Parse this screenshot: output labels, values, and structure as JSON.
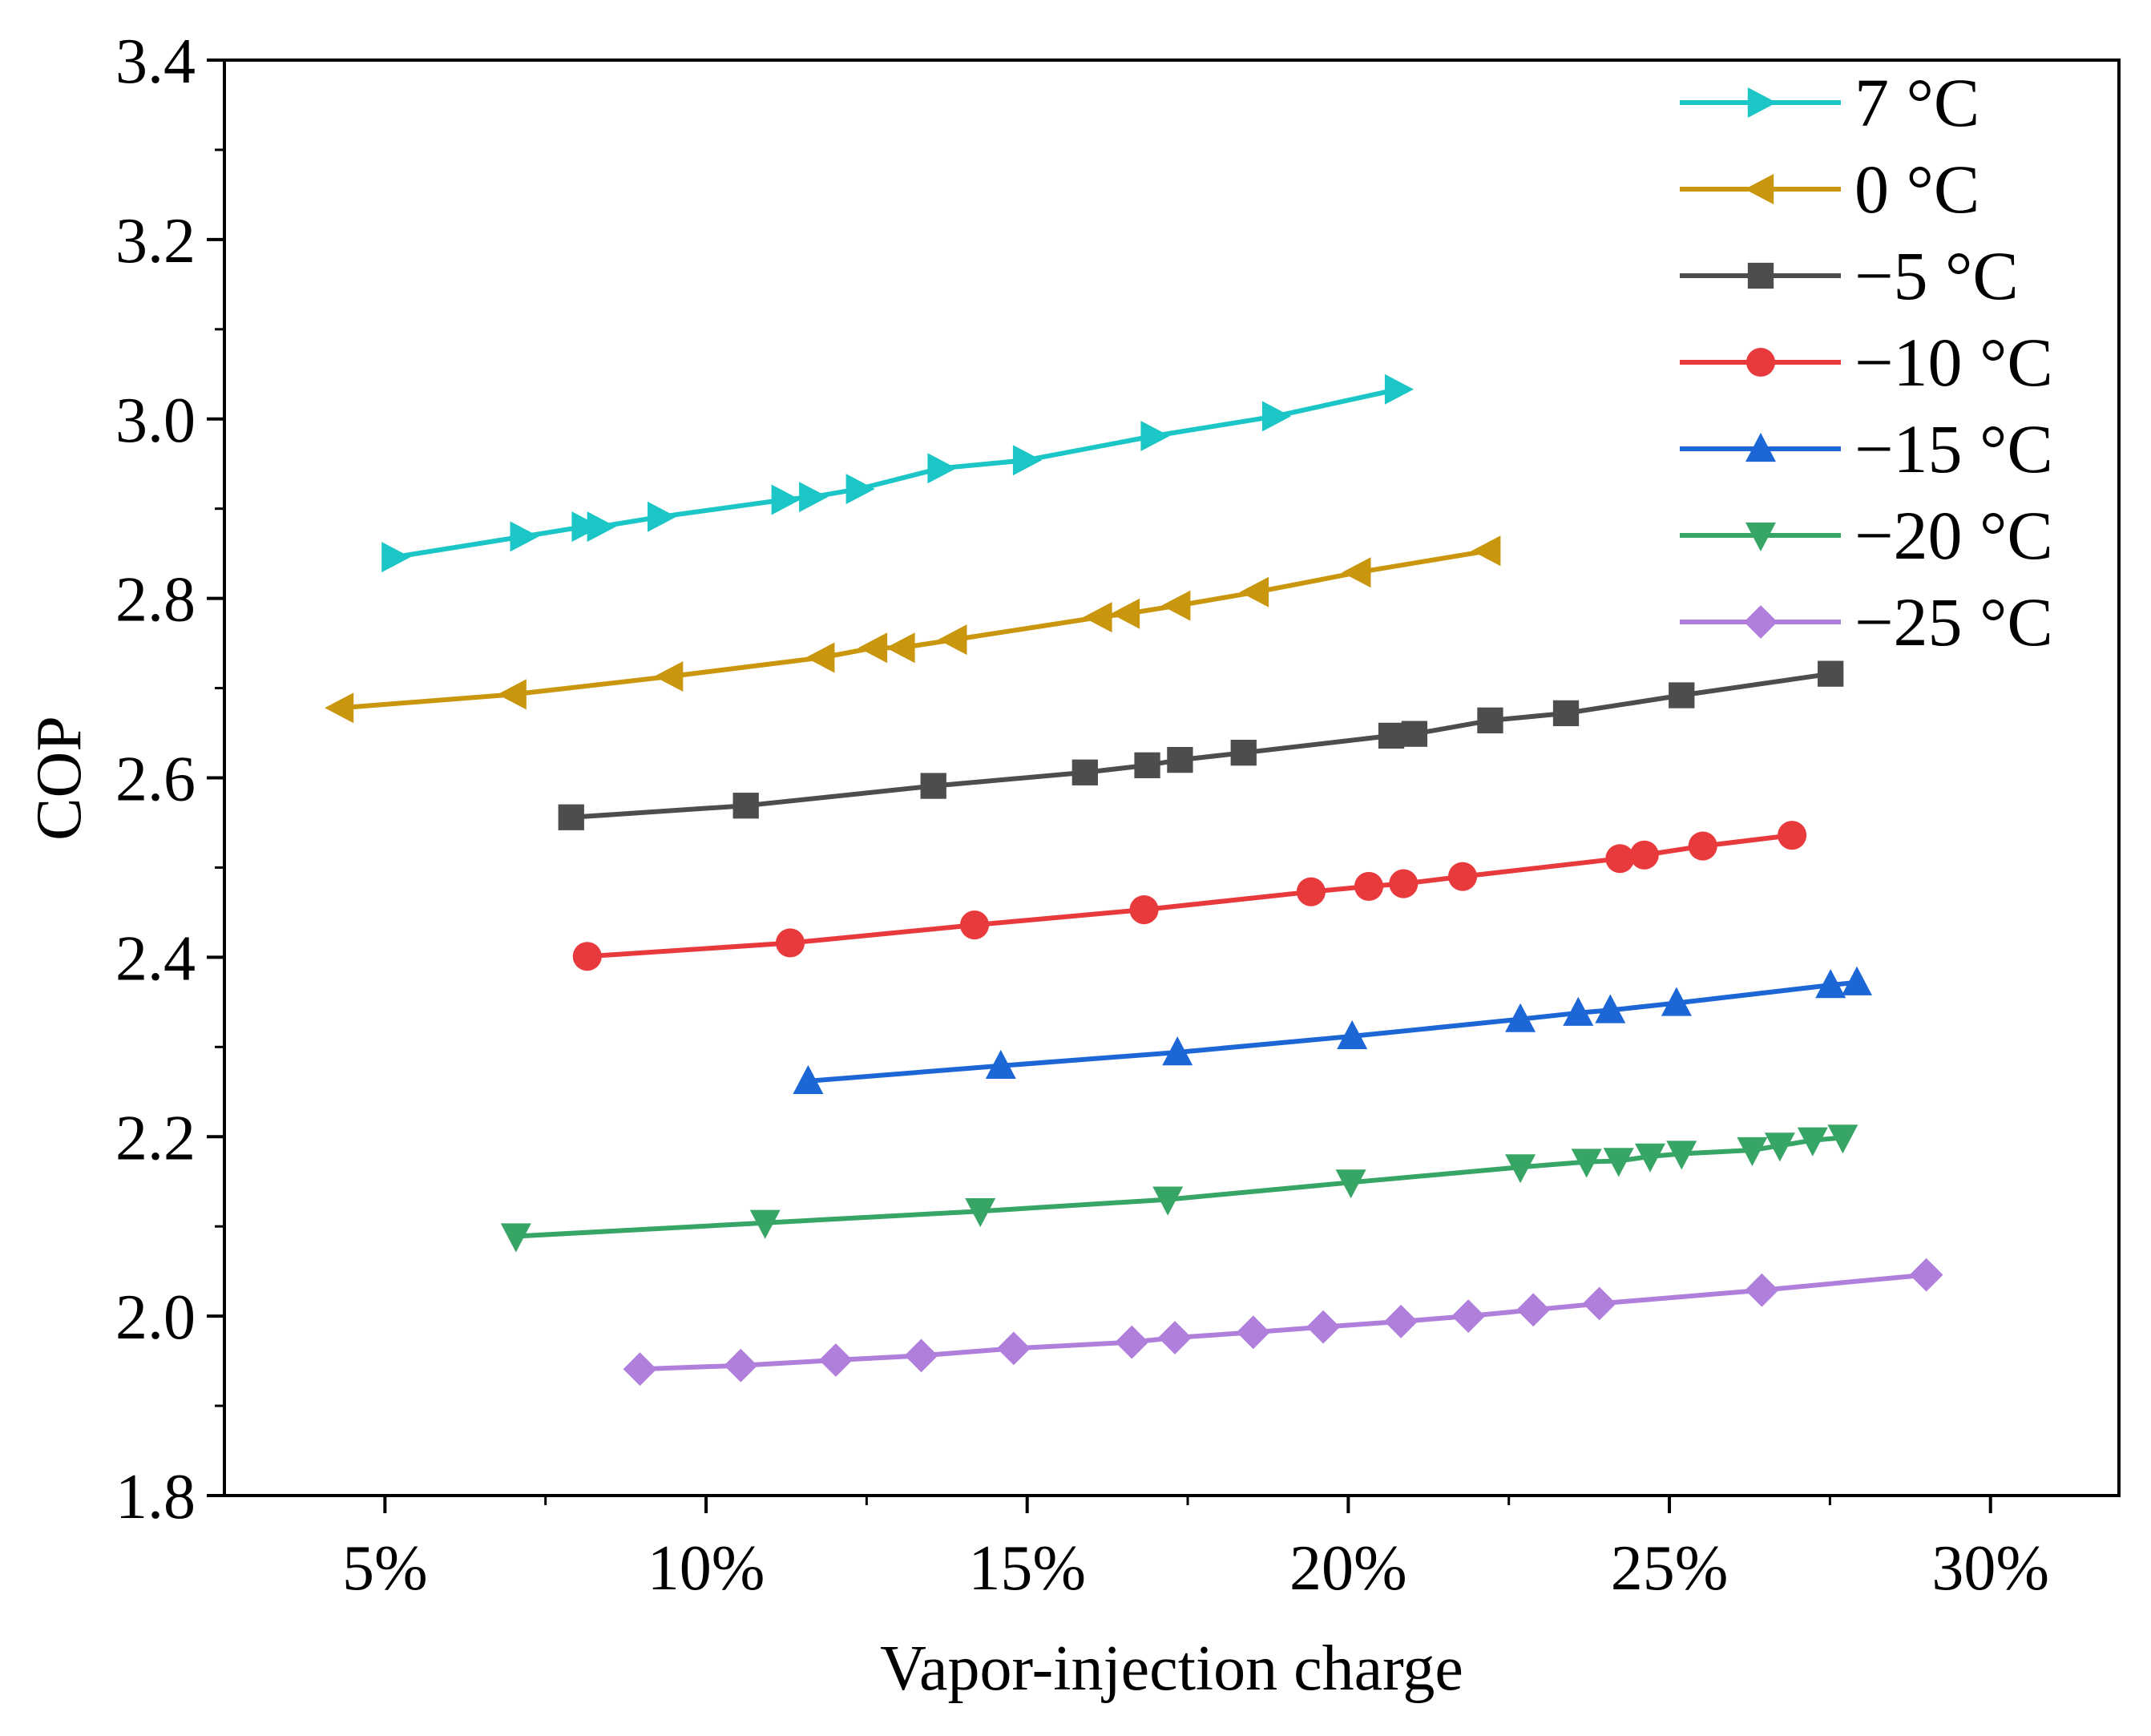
{
  "chart_data": {
    "type": "line",
    "title": "",
    "xlabel": "Vapor-injection charge",
    "ylabel": "COP",
    "xlim": [
      2.5,
      32.0
    ],
    "ylim": [
      1.8,
      3.4
    ],
    "xticks": [
      5,
      10,
      15,
      20,
      25,
      30
    ],
    "xtick_labels": [
      "5%",
      "10%",
      "15%",
      "20%",
      "25%",
      "30%"
    ],
    "yticks": [
      1.8,
      2.0,
      2.2,
      2.4,
      2.6,
      2.8,
      3.0,
      3.2,
      3.4
    ],
    "ytick_labels": [
      "1.8",
      "2.0",
      "2.2",
      "2.4",
      "2.6",
      "2.8",
      "3.0",
      "3.2",
      "3.4"
    ],
    "grid": false,
    "legend_position": "top-right",
    "series": [
      {
        "name": "7 °C",
        "color": "#1cc6c6",
        "marker": "triangle-right",
        "x": [
          5.15,
          7.15,
          8.11,
          8.35,
          9.29,
          11.22,
          11.65,
          12.38,
          13.65,
          14.98,
          16.97,
          18.86,
          20.77
        ],
        "y": [
          2.846,
          2.869,
          2.88,
          2.88,
          2.891,
          2.91,
          2.913,
          2.922,
          2.945,
          2.954,
          2.981,
          3.003,
          3.033
        ]
      },
      {
        "name": "0 °C",
        "color": "#c9960e",
        "marker": "triangle-left",
        "x": [
          4.31,
          7.0,
          9.44,
          11.8,
          12.62,
          13.05,
          13.86,
          16.12,
          16.55,
          17.34,
          18.56,
          20.15,
          22.17
        ],
        "y": [
          2.678,
          2.693,
          2.713,
          2.734,
          2.745,
          2.745,
          2.754,
          2.779,
          2.783,
          2.792,
          2.807,
          2.829,
          2.853
        ]
      },
      {
        "name": "−5 °C",
        "color": "#4d4d4d",
        "marker": "square",
        "x": [
          7.9,
          10.62,
          13.54,
          15.9,
          16.87,
          17.38,
          18.37,
          20.67,
          21.03,
          22.21,
          23.39,
          25.19,
          27.51
        ],
        "y": [
          2.556,
          2.569,
          2.591,
          2.606,
          2.614,
          2.62,
          2.628,
          2.647,
          2.649,
          2.664,
          2.672,
          2.692,
          2.716
        ]
      },
      {
        "name": "−10 °C",
        "color": "#e83a3c",
        "marker": "circle",
        "x": [
          8.15,
          11.31,
          14.18,
          16.82,
          19.42,
          20.32,
          20.86,
          21.78,
          24.23,
          24.61,
          25.52,
          26.91
        ],
        "y": [
          2.401,
          2.416,
          2.436,
          2.453,
          2.473,
          2.479,
          2.482,
          2.49,
          2.51,
          2.514,
          2.524,
          2.536
        ]
      },
      {
        "name": "−15 °C",
        "color": "#1d66d6",
        "marker": "triangle-up",
        "x": [
          11.59,
          14.59,
          17.34,
          20.06,
          22.68,
          23.58,
          24.08,
          25.11,
          27.51,
          27.92
        ],
        "y": [
          2.262,
          2.279,
          2.294,
          2.312,
          2.331,
          2.338,
          2.341,
          2.349,
          2.369,
          2.372
        ]
      },
      {
        "name": "−20 °C",
        "color": "#37a566",
        "marker": "triangle-down",
        "x": [
          7.04,
          10.92,
          14.27,
          17.19,
          20.04,
          22.68,
          23.71,
          24.21,
          24.7,
          25.19,
          26.29,
          26.72,
          27.23,
          27.7
        ],
        "y": [
          2.089,
          2.104,
          2.117,
          2.13,
          2.149,
          2.166,
          2.172,
          2.173,
          2.178,
          2.181,
          2.185,
          2.19,
          2.196,
          2.199
        ]
      },
      {
        "name": "−25 °C",
        "color": "#b07fdc",
        "marker": "diamond",
        "x": [
          8.97,
          10.54,
          12.02,
          13.35,
          14.79,
          16.63,
          17.3,
          18.52,
          19.61,
          20.82,
          21.87,
          22.88,
          23.91,
          26.44,
          29.0
        ],
        "y": [
          1.941,
          1.945,
          1.951,
          1.956,
          1.964,
          1.971,
          1.976,
          1.982,
          1.988,
          1.994,
          2.0,
          2.007,
          2.014,
          2.029,
          2.046
        ]
      }
    ]
  }
}
